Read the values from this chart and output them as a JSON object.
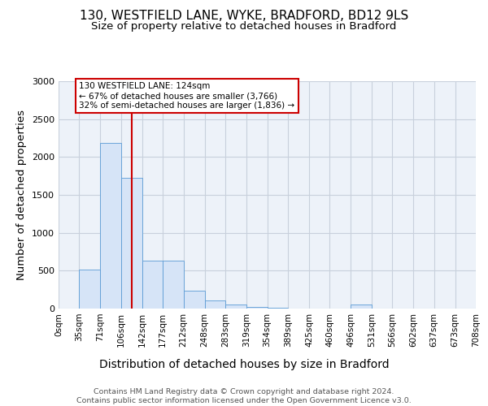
{
  "title": "130, WESTFIELD LANE, WYKE, BRADFORD, BD12 9LS",
  "subtitle": "Size of property relative to detached houses in Bradford",
  "xlabel": "Distribution of detached houses by size in Bradford",
  "ylabel": "Number of detached properties",
  "footer": "Contains HM Land Registry data © Crown copyright and database right 2024.\nContains public sector information licensed under the Open Government Licence v3.0.",
  "bin_edges": [
    0,
    35,
    71,
    106,
    142,
    177,
    212,
    248,
    283,
    319,
    354,
    389,
    425,
    460,
    496,
    531,
    566,
    602,
    637,
    673,
    708
  ],
  "bar_values": [
    5,
    510,
    2190,
    1720,
    630,
    630,
    240,
    110,
    55,
    20,
    10,
    5,
    3,
    3,
    50,
    2,
    1,
    1,
    1,
    1
  ],
  "bar_color": "#d6e4f7",
  "bar_edge_color": "#5b9bd5",
  "property_size": 124,
  "annotation_text": "130 WESTFIELD LANE: 124sqm\n← 67% of detached houses are smaller (3,766)\n32% of semi-detached houses are larger (1,836) →",
  "annotation_box_color": "#cc0000",
  "vline_color": "#cc0000",
  "ylim": [
    0,
    3000
  ],
  "yticks": [
    0,
    500,
    1000,
    1500,
    2000,
    2500,
    3000
  ],
  "grid_color": "#c8d0dc",
  "bg_color": "#edf2f9",
  "title_fontsize": 11,
  "subtitle_fontsize": 9.5,
  "axis_label_fontsize": 9.5,
  "tick_fontsize": 7.5,
  "footer_fontsize": 6.8
}
